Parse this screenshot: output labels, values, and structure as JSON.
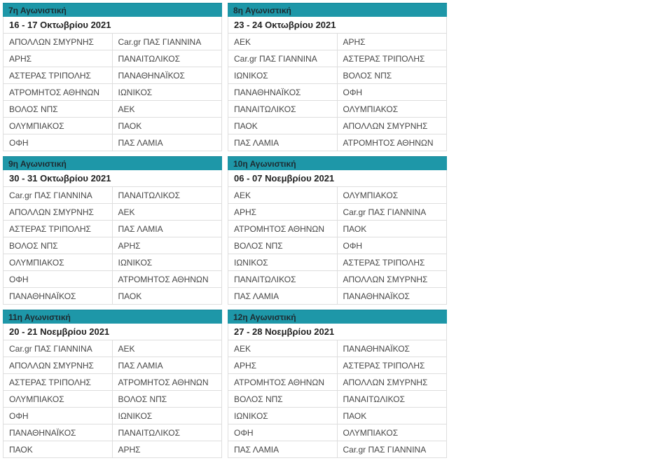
{
  "page": {
    "description": "Greek Super League fixtures schedule, matchdays 7-12"
  },
  "colors": {
    "page_bg": "#ffffff",
    "header_bg": "#1e97a8",
    "header_border": "#15879a",
    "header_text": "#1d2b31",
    "date_text": "#222222",
    "team_text": "#474747",
    "border": "#dedede"
  },
  "matchdays": [
    {
      "title": "7η Αγωνιστική",
      "date": "16 - 17 Οκτωβρίου 2021",
      "fixtures": [
        [
          "ΑΠΟΛΛΩΝ ΣΜΥΡΝΗΣ",
          "Car.gr ΠΑΣ ΓΙΑΝΝΙΝΑ"
        ],
        [
          "ΑΡΗΣ",
          "ΠΑΝΑΙΤΩΛΙΚΟΣ"
        ],
        [
          "ΑΣΤΕΡΑΣ ΤΡΙΠΟΛΗΣ",
          "ΠΑΝΑΘΗΝΑΪΚΟΣ"
        ],
        [
          "ΑΤΡΟΜΗΤΟΣ ΑΘΗΝΩΝ",
          "ΙΩΝΙΚΟΣ"
        ],
        [
          "ΒΟΛΟΣ ΝΠΣ",
          "ΑΕΚ"
        ],
        [
          "ΟΛΥΜΠΙΑΚΟΣ",
          "ΠΑΟΚ"
        ],
        [
          "ΟΦΗ",
          "ΠΑΣ ΛΑΜΙΑ"
        ]
      ]
    },
    {
      "title": "8η Αγωνιστική",
      "date": "23 - 24 Οκτωβρίου 2021",
      "fixtures": [
        [
          "ΑΕΚ",
          "ΑΡΗΣ"
        ],
        [
          "Car.gr ΠΑΣ ΓΙΑΝΝΙΝΑ",
          "ΑΣΤΕΡΑΣ ΤΡΙΠΟΛΗΣ"
        ],
        [
          "ΙΩΝΙΚΟΣ",
          "ΒΟΛΟΣ ΝΠΣ"
        ],
        [
          "ΠΑΝΑΘΗΝΑΪΚΟΣ",
          "ΟΦΗ"
        ],
        [
          "ΠΑΝΑΙΤΩΛΙΚΟΣ",
          "ΟΛΥΜΠΙΑΚΟΣ"
        ],
        [
          "ΠΑΟΚ",
          "ΑΠΟΛΛΩΝ ΣΜΥΡΝΗΣ"
        ],
        [
          "ΠΑΣ ΛΑΜΙΑ",
          "ΑΤΡΟΜΗΤΟΣ ΑΘΗΝΩΝ"
        ]
      ]
    },
    {
      "title": "9η Αγωνιστική",
      "date": "30 - 31 Οκτωβρίου 2021",
      "fixtures": [
        [
          "Car.gr ΠΑΣ ΓΙΑΝΝΙΝΑ",
          "ΠΑΝΑΙΤΩΛΙΚΟΣ"
        ],
        [
          "ΑΠΟΛΛΩΝ ΣΜΥΡΝΗΣ",
          "ΑΕΚ"
        ],
        [
          "ΑΣΤΕΡΑΣ ΤΡΙΠΟΛΗΣ",
          "ΠΑΣ ΛΑΜΙΑ"
        ],
        [
          "ΒΟΛΟΣ ΝΠΣ",
          "ΑΡΗΣ"
        ],
        [
          "ΟΛΥΜΠΙΑΚΟΣ",
          "ΙΩΝΙΚΟΣ"
        ],
        [
          "ΟΦΗ",
          "ΑΤΡΟΜΗΤΟΣ ΑΘΗΝΩΝ"
        ],
        [
          "ΠΑΝΑΘΗΝΑΪΚΟΣ",
          "ΠΑΟΚ"
        ]
      ]
    },
    {
      "title": "10η Αγωνιστική",
      "date": "06 - 07 Νοεμβρίου 2021",
      "fixtures": [
        [
          "ΑΕΚ",
          "ΟΛΥΜΠΙΑΚΟΣ"
        ],
        [
          "ΑΡΗΣ",
          "Car.gr ΠΑΣ ΓΙΑΝΝΙΝΑ"
        ],
        [
          "ΑΤΡΟΜΗΤΟΣ ΑΘΗΝΩΝ",
          "ΠΑΟΚ"
        ],
        [
          "ΒΟΛΟΣ ΝΠΣ",
          "ΟΦΗ"
        ],
        [
          "ΙΩΝΙΚΟΣ",
          "ΑΣΤΕΡΑΣ ΤΡΙΠΟΛΗΣ"
        ],
        [
          "ΠΑΝΑΙΤΩΛΙΚΟΣ",
          "ΑΠΟΛΛΩΝ ΣΜΥΡΝΗΣ"
        ],
        [
          "ΠΑΣ ΛΑΜΙΑ",
          "ΠΑΝΑΘΗΝΑΪΚΟΣ"
        ]
      ]
    },
    {
      "title": "11η Αγωνιστική",
      "date": "20 - 21 Νοεμβρίου 2021",
      "fixtures": [
        [
          "Car.gr ΠΑΣ ΓΙΑΝΝΙΝΑ",
          "ΑΕΚ"
        ],
        [
          "ΑΠΟΛΛΩΝ ΣΜΥΡΝΗΣ",
          "ΠΑΣ ΛΑΜΙΑ"
        ],
        [
          "ΑΣΤΕΡΑΣ ΤΡΙΠΟΛΗΣ",
          "ΑΤΡΟΜΗΤΟΣ ΑΘΗΝΩΝ"
        ],
        [
          "ΟΛΥΜΠΙΑΚΟΣ",
          "ΒΟΛΟΣ ΝΠΣ"
        ],
        [
          "ΟΦΗ",
          "ΙΩΝΙΚΟΣ"
        ],
        [
          "ΠΑΝΑΘΗΝΑΪΚΟΣ",
          "ΠΑΝΑΙΤΩΛΙΚΟΣ"
        ],
        [
          "ΠΑΟΚ",
          "ΑΡΗΣ"
        ]
      ]
    },
    {
      "title": "12η Αγωνιστική",
      "date": "27 - 28 Νοεμβρίου 2021",
      "fixtures": [
        [
          "ΑΕΚ",
          "ΠΑΝΑΘΗΝΑΪΚΟΣ"
        ],
        [
          "ΑΡΗΣ",
          "ΑΣΤΕΡΑΣ ΤΡΙΠΟΛΗΣ"
        ],
        [
          "ΑΤΡΟΜΗΤΟΣ ΑΘΗΝΩΝ",
          "ΑΠΟΛΛΩΝ ΣΜΥΡΝΗΣ"
        ],
        [
          "ΒΟΛΟΣ ΝΠΣ",
          "ΠΑΝΑΙΤΩΛΙΚΟΣ"
        ],
        [
          "ΙΩΝΙΚΟΣ",
          "ΠΑΟΚ"
        ],
        [
          "ΟΦΗ",
          "ΟΛΥΜΠΙΑΚΟΣ"
        ],
        [
          "ΠΑΣ ΛΑΜΙΑ",
          "Car.gr ΠΑΣ ΓΙΑΝΝΙΝΑ"
        ]
      ]
    }
  ]
}
